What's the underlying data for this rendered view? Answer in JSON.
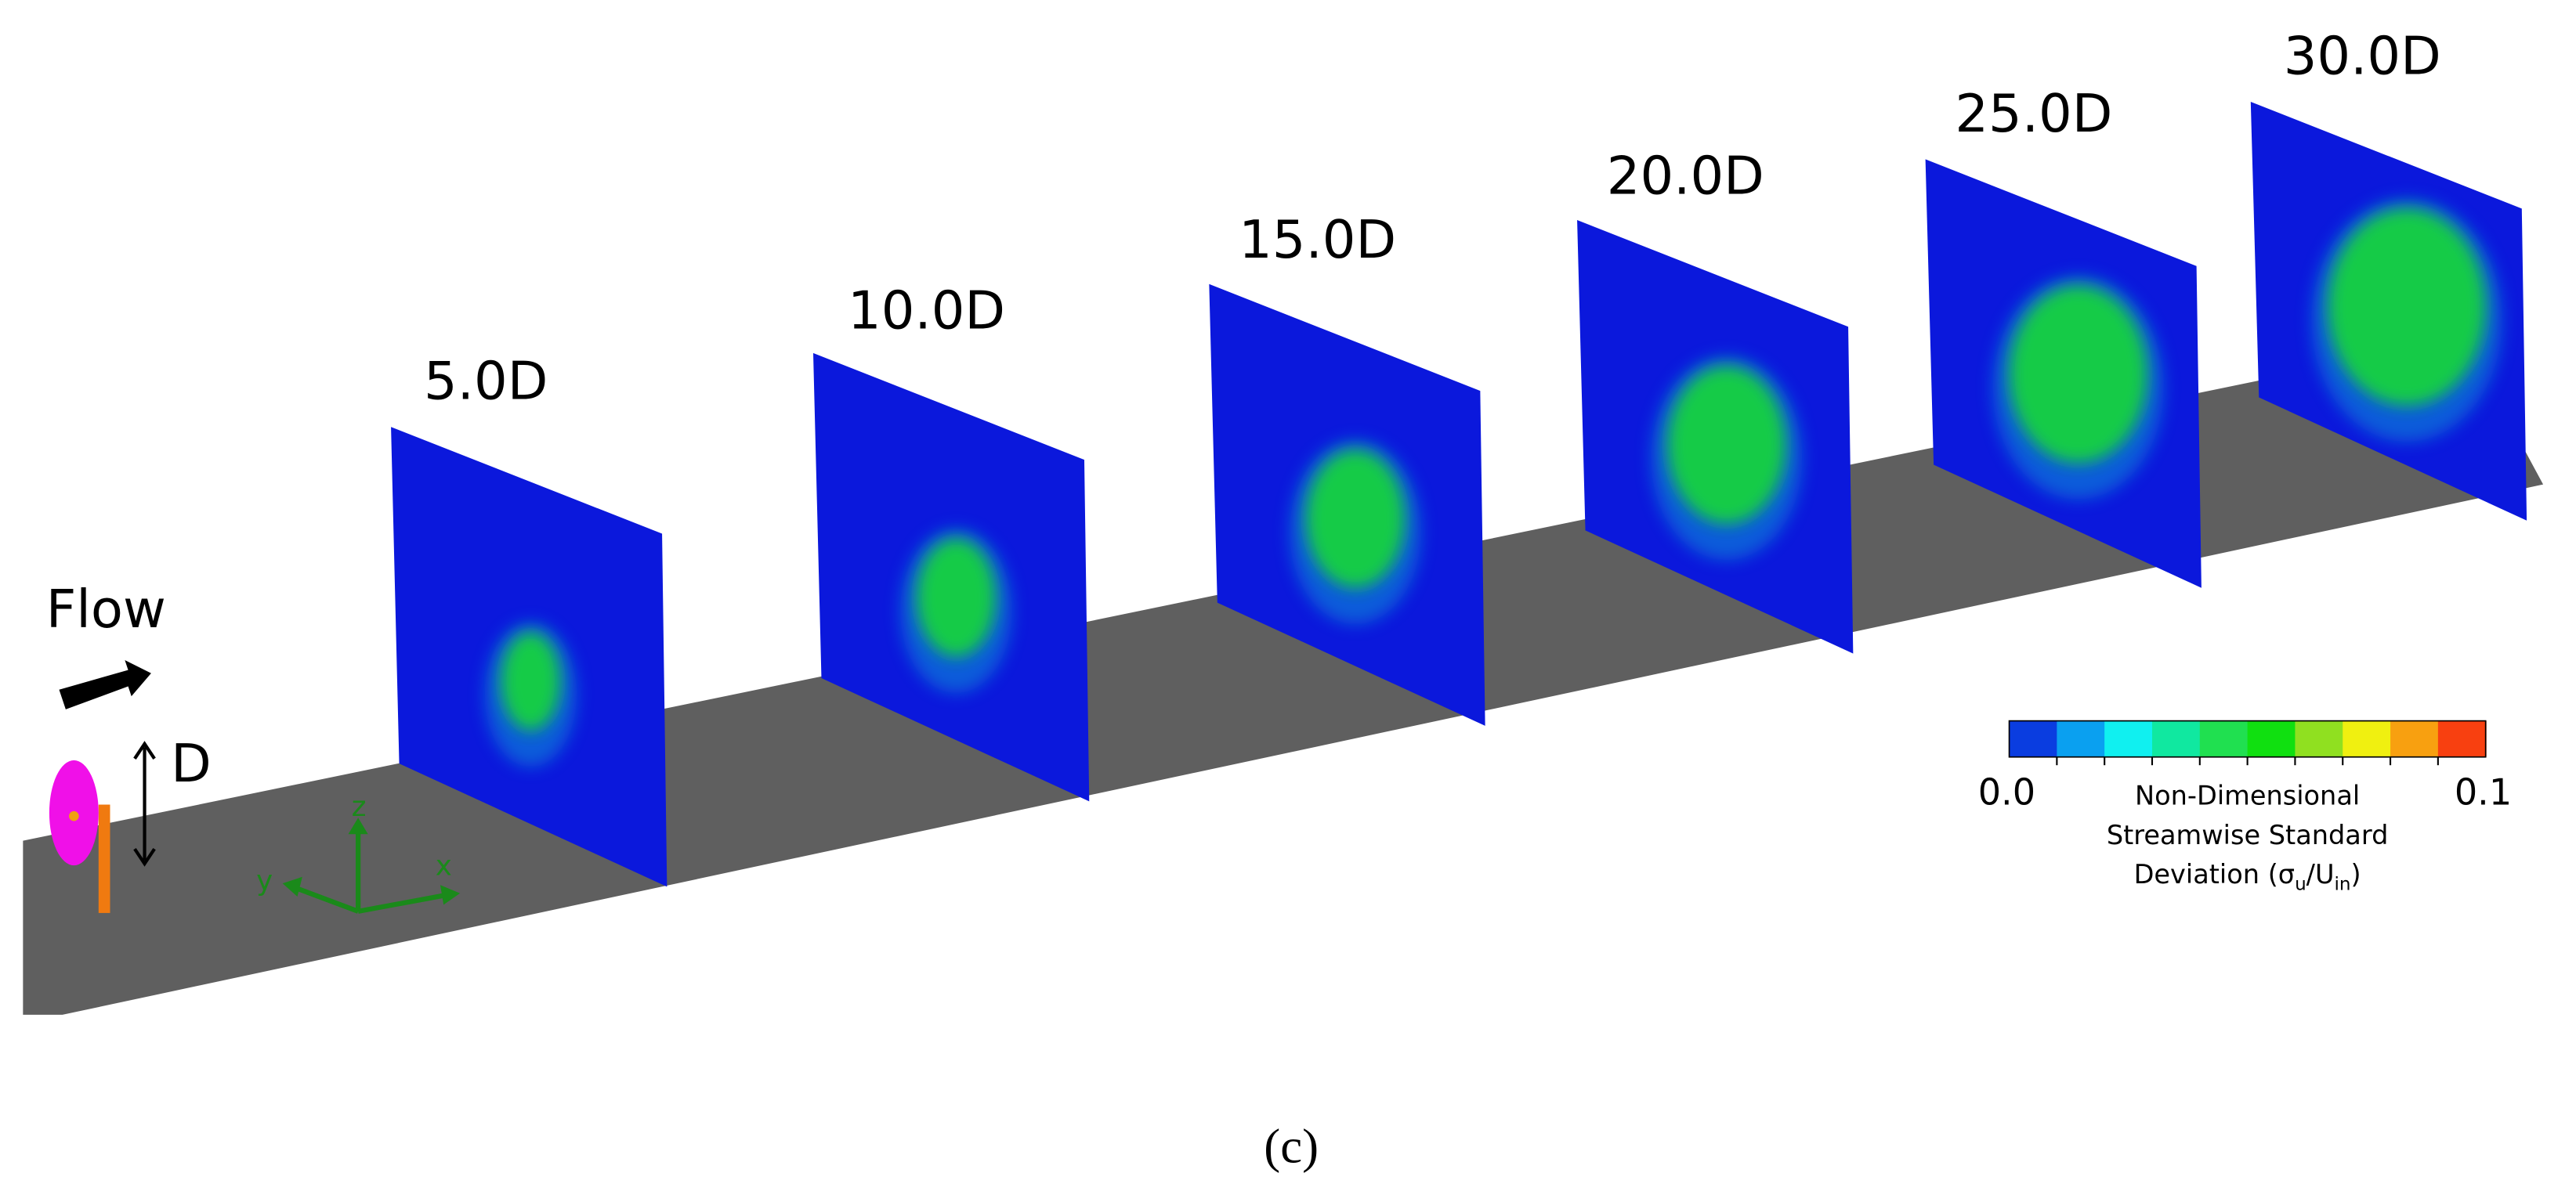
{
  "planes": [
    {
      "label": "5.0D"
    },
    {
      "label": "10.0D"
    },
    {
      "label": "15.0D"
    },
    {
      "label": "20.0D"
    },
    {
      "label": "25.0D"
    },
    {
      "label": "30.0D"
    }
  ],
  "flow_label": "Flow",
  "diameter_label": "D",
  "axes": {
    "x": "x",
    "y": "y",
    "z": "z"
  },
  "colorbar": {
    "min_label": "0.0",
    "max_label": "0.1",
    "colors": [
      "#0a3de0",
      "#0aa0f0",
      "#10f0f0",
      "#10e8a0",
      "#20e050",
      "#10e010",
      "#90e020",
      "#f0f010",
      "#f8a010",
      "#f84010"
    ],
    "title_lines": [
      "Non-Dimensional",
      "Streamwise Standard"
    ],
    "title_last": [
      "Deviation (σ",
      "u",
      "/U",
      "in",
      ")"
    ]
  },
  "caption": "(c)"
}
